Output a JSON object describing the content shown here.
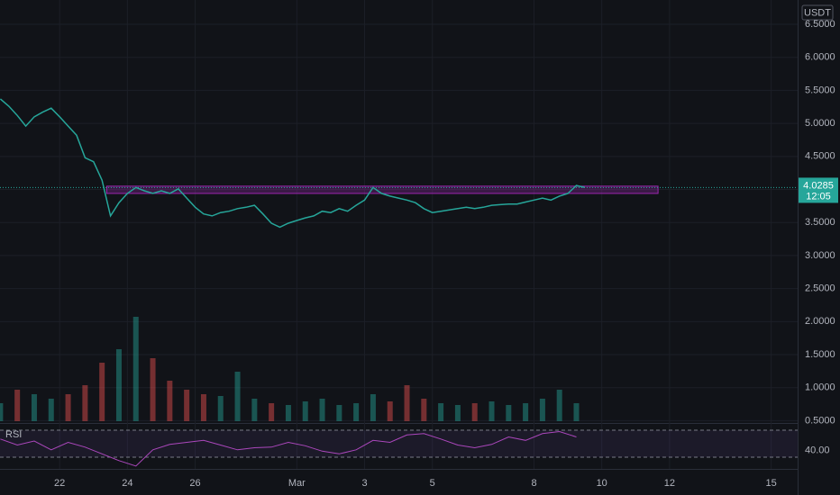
{
  "chart_data": {
    "type": "line",
    "currency": "USDT",
    "x": [
      -1.75,
      -1.5,
      -1.25,
      -1,
      -0.75,
      -0.5,
      -0.25,
      0,
      0.25,
      0.5,
      0.75,
      1,
      1.25,
      1.5,
      1.75,
      2,
      2.25,
      2.5,
      2.75,
      3,
      3.25,
      3.5,
      3.75,
      4,
      4.25,
      4.5,
      4.75,
      5,
      5.25,
      5.5,
      5.75,
      6,
      6.25,
      6.5,
      6.75,
      7,
      7.25,
      7.5,
      7.75,
      8,
      8.25,
      8.5,
      8.75,
      9,
      9.25,
      9.5,
      9.75,
      10,
      10.25,
      10.5,
      10.75,
      11,
      11.25,
      11.5,
      11.75,
      12,
      12.25,
      12.5,
      12.75,
      13,
      13.25,
      13.5,
      13.75,
      14,
      14.25,
      14.5,
      14.75,
      15,
      15.25,
      15.5
    ],
    "values": [
      5.37,
      5.26,
      5.12,
      4.96,
      5.1,
      5.17,
      5.23,
      5.1,
      4.96,
      4.82,
      4.48,
      4.42,
      4.14,
      3.6,
      3.8,
      3.94,
      4.03,
      3.98,
      3.94,
      3.98,
      3.94,
      4.01,
      3.87,
      3.73,
      3.63,
      3.6,
      3.65,
      3.67,
      3.71,
      3.73,
      3.76,
      3.63,
      3.49,
      3.43,
      3.49,
      3.53,
      3.57,
      3.6,
      3.67,
      3.65,
      3.71,
      3.67,
      3.76,
      3.84,
      4.03,
      3.94,
      3.9,
      3.87,
      3.84,
      3.8,
      3.71,
      3.65,
      3.67,
      3.69,
      3.71,
      3.73,
      3.71,
      3.73,
      3.76,
      3.77,
      3.78,
      3.78,
      3.81,
      3.84,
      3.87,
      3.84,
      3.9,
      3.94,
      4.06,
      4.03
    ],
    "color": "#26a69a",
    "last_price": 4.0285,
    "countdown": "12:05",
    "zone": {
      "x": [
        1.39,
        17.66
      ],
      "y": [
        3.94,
        4.05
      ],
      "color": "#9c27b0"
    },
    "xlim": [
      -1.76,
      21.78
    ],
    "xticks": [
      {
        "value": 0,
        "label": "22"
      },
      {
        "value": 2,
        "label": "24"
      },
      {
        "value": 4,
        "label": "26"
      },
      {
        "value": 7,
        "label": "Mar"
      },
      {
        "value": 9,
        "label": "3"
      },
      {
        "value": 11,
        "label": "5"
      },
      {
        "value": 14,
        "label": "8"
      },
      {
        "value": 16,
        "label": "10"
      },
      {
        "value": 18,
        "label": "12"
      },
      {
        "value": 21,
        "label": "15"
      }
    ],
    "ylim": [
      0.465,
      6.868
    ],
    "yticks": [
      {
        "value": 0.5,
        "label": "0.5000"
      },
      {
        "value": 1,
        "label": "1.0000"
      },
      {
        "value": 1.5,
        "label": "1.5000"
      },
      {
        "value": 2,
        "label": "2.0000"
      },
      {
        "value": 2.5,
        "label": "2.5000"
      },
      {
        "value": 3,
        "label": "3.0000"
      },
      {
        "value": 3.5,
        "label": "3.5000"
      },
      {
        "value": 4,
        "label": "4.0000"
      },
      {
        "value": 4.5,
        "label": "4.5000"
      },
      {
        "value": 5,
        "label": "5.0000"
      },
      {
        "value": 5.5,
        "label": "5.5000"
      },
      {
        "value": 6,
        "label": "6.0000"
      },
      {
        "value": 6.5,
        "label": "6.5000"
      }
    ],
    "grid": true,
    "volume": {
      "x": [
        -1.75,
        -1.25,
        -0.75,
        -0.25,
        0.25,
        0.75,
        1.25,
        1.75,
        2.25,
        2.75,
        3.25,
        3.75,
        4.25,
        4.75,
        5.25,
        5.75,
        6.25,
        6.75,
        7.25,
        7.75,
        8.25,
        8.75,
        9.25,
        9.75,
        10.25,
        10.75,
        11.25,
        11.75,
        12.25,
        12.75,
        13.25,
        13.75,
        14.25,
        14.75,
        15.25
      ],
      "values": [
        20,
        35,
        30,
        25,
        30,
        40,
        65,
        80,
        116,
        70,
        45,
        35,
        30,
        28,
        55,
        25,
        20,
        18,
        22,
        25,
        18,
        20,
        30,
        22,
        40,
        25,
        20,
        18,
        20,
        22,
        18,
        20,
        25,
        35,
        20
      ],
      "ylim": [
        0,
        120
      ],
      "up_color": "#26a69a",
      "down_color": "#ef5350"
    },
    "rsi": {
      "name": "RSI",
      "x": [
        -1.75,
        -1.25,
        -0.75,
        -0.25,
        0.25,
        0.75,
        1.25,
        1.75,
        2.25,
        2.75,
        3.25,
        3.75,
        4.25,
        4.75,
        5.25,
        5.75,
        6.25,
        6.75,
        7.25,
        7.75,
        8.25,
        8.75,
        9.25,
        9.75,
        10.25,
        10.75,
        11.25,
        11.75,
        12.25,
        12.75,
        13.25,
        13.75,
        14.25,
        14.75,
        15.25
      ],
      "values": [
        57,
        48,
        54,
        41,
        52,
        45,
        35,
        25,
        17,
        41,
        49,
        52,
        55,
        48,
        41,
        44,
        45,
        52,
        47,
        39,
        35,
        41,
        55,
        52,
        63,
        65,
        57,
        48,
        44,
        49,
        60,
        55,
        65,
        68,
        60
      ],
      "color": "#ab47bc",
      "bands": [
        30,
        70
      ],
      "ylim": [
        12.7,
        80.7
      ],
      "yticks": [
        {
          "value": 40,
          "label": "40.00"
        }
      ]
    }
  }
}
